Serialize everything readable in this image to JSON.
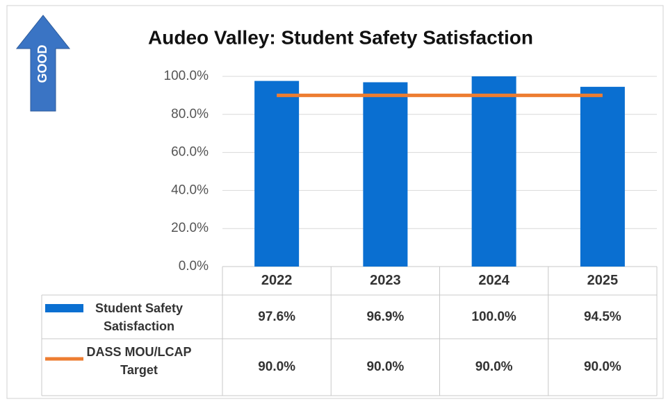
{
  "chart_data": {
    "type": "bar_line_table",
    "title": "Audeo Valley: Student Safety Satisfaction",
    "annotations": [
      "GOOD"
    ],
    "categories": [
      "2022",
      "2023",
      "2024",
      "2025"
    ],
    "series": [
      {
        "name": "Student Safety Satisfaction",
        "type": "bar",
        "color": "#0a6fd1",
        "values": [
          97.6,
          96.9,
          100.0,
          94.5
        ],
        "value_labels": [
          "97.6%",
          "96.9%",
          "100.0%",
          "94.5%"
        ]
      },
      {
        "name": "DASS MOU/LCAP Target",
        "type": "line",
        "color": "#ed7d31",
        "values": [
          90.0,
          90.0,
          90.0,
          90.0
        ],
        "value_labels": [
          "90.0%",
          "90.0%",
          "90.0%",
          "90.0%"
        ]
      }
    ],
    "ylim": [
      0,
      100
    ],
    "yticks": [
      {
        "value": 0,
        "label": "0.0%"
      },
      {
        "value": 20,
        "label": "20.0%"
      },
      {
        "value": 40,
        "label": "40.0%"
      },
      {
        "value": 60,
        "label": "60.0%"
      },
      {
        "value": 80,
        "label": "80.0%"
      },
      {
        "value": 100,
        "label": "100.0%"
      }
    ],
    "grid": true
  }
}
